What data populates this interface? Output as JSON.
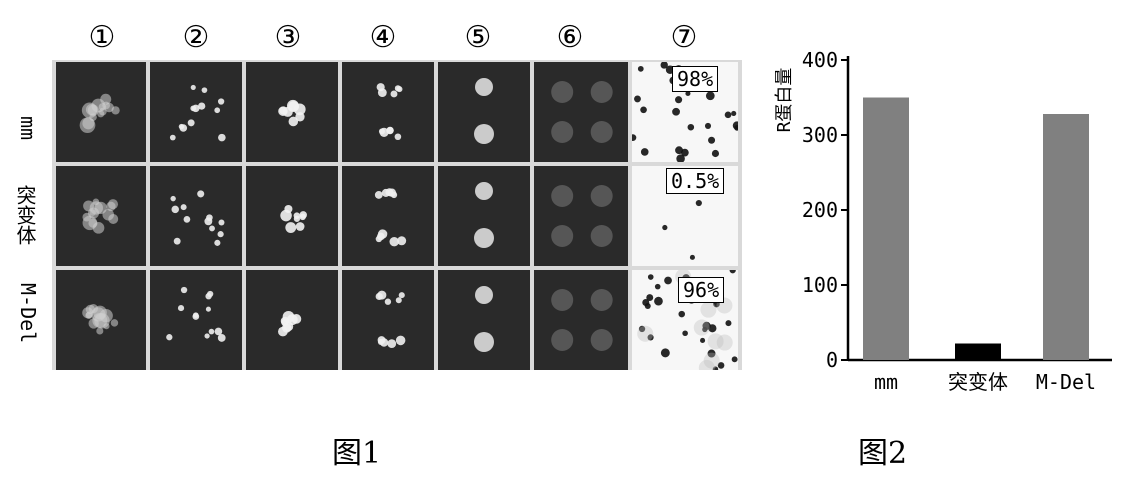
{
  "figure1": {
    "caption": "图1",
    "column_headers": [
      "①",
      "②",
      "③",
      "④",
      "⑤",
      "⑥",
      "⑦"
    ],
    "row_labels": [
      "mm",
      "突变体",
      "M-Del"
    ],
    "percentages": [
      "98%",
      "0.5%",
      "96%"
    ]
  },
  "figure2": {
    "caption": "图2",
    "chart_data": {
      "type": "bar",
      "categories": [
        "mm",
        "突变体",
        "M-Del"
      ],
      "values": [
        350,
        22,
        328
      ],
      "ylabel": "R蛋白量",
      "ylim": [
        0,
        400
      ],
      "yticks": [
        "0",
        "100",
        "200",
        "300",
        "400"
      ],
      "grid": false,
      "colors": [
        "#808080",
        "#000000",
        "#808080"
      ]
    }
  }
}
